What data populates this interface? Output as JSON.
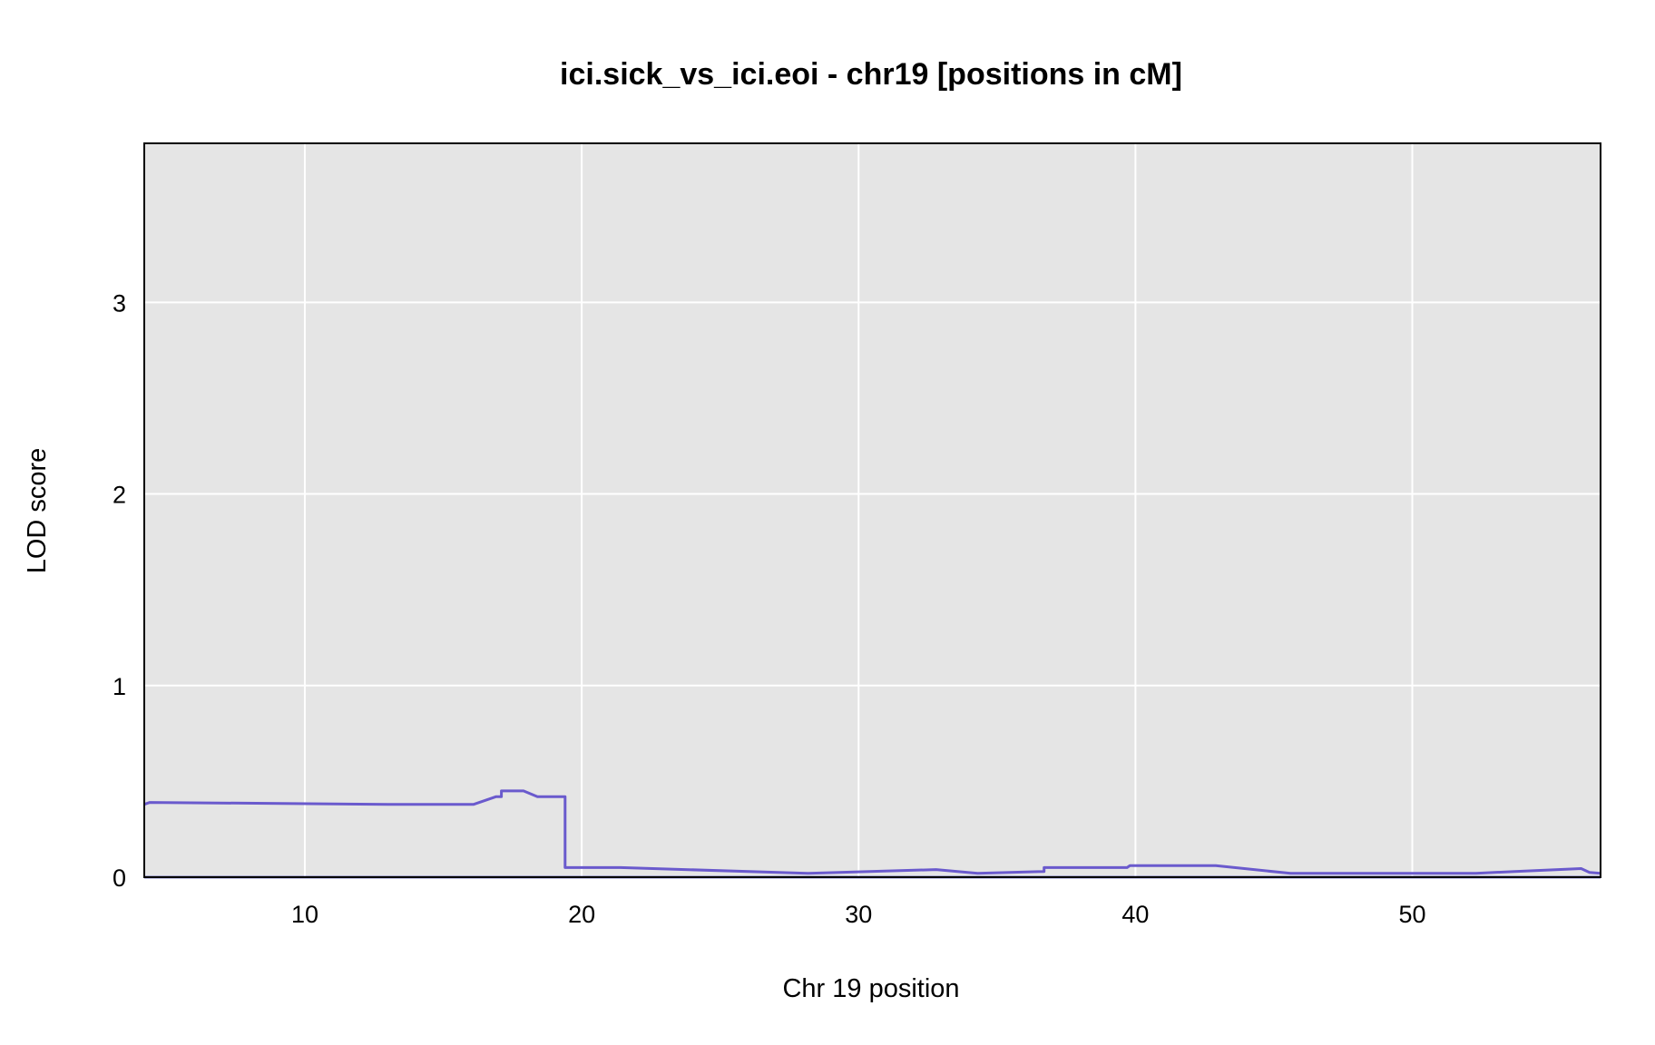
{
  "chart_data": {
    "type": "line",
    "title": "ici.sick_vs_ici.eoi - chr19 [positions in cM]",
    "xlabel": "Chr 19 position",
    "ylabel": "LOD score",
    "xlim": [
      4.2,
      56.8
    ],
    "ylim": [
      0,
      3.83
    ],
    "xticks": [
      10,
      20,
      30,
      40,
      50
    ],
    "yticks": [
      0,
      1,
      2,
      3
    ],
    "grid": true,
    "background": "#e5e5e5",
    "grid_color": "#ffffff",
    "line_color": "#6a5acd",
    "baseline_color": "#00008b",
    "series": [
      {
        "x": [
          4.2,
          4.4,
          13.0,
          16.1,
          16.9,
          17.1,
          17.1,
          17.9,
          18.4,
          19.4,
          19.4,
          21.4,
          28.2,
          32.8,
          34.3,
          36.7,
          36.7,
          39.7,
          39.8,
          40.0,
          42.9,
          45.6,
          52.3,
          53.7,
          56.1,
          56.4,
          56.8
        ],
        "y": [
          0.38,
          0.39,
          0.38,
          0.38,
          0.42,
          0.42,
          0.45,
          0.45,
          0.42,
          0.42,
          0.05,
          0.05,
          0.02,
          0.04,
          0.02,
          0.03,
          0.05,
          0.05,
          0.06,
          0.06,
          0.06,
          0.02,
          0.02,
          0.03,
          0.045,
          0.025,
          0.02
        ]
      }
    ]
  }
}
